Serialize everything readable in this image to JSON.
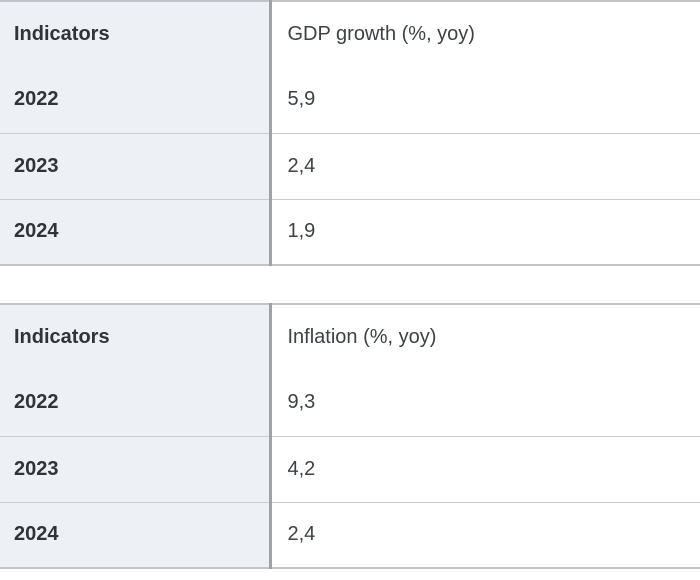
{
  "tables": [
    {
      "name": "gdp-growth",
      "header": {
        "col1": "Indicators",
        "col2": "GDP growth (%, yoy)"
      },
      "rows": [
        {
          "year": "2022",
          "value": "5,9"
        },
        {
          "year": "2023",
          "value": "2,4"
        },
        {
          "year": "2024",
          "value": "1,9"
        }
      ]
    },
    {
      "name": "inflation",
      "header": {
        "col1": "Indicators",
        "col2": "Inflation (%, yoy)"
      },
      "rows": [
        {
          "year": "2022",
          "value": "9,3"
        },
        {
          "year": "2023",
          "value": "4,2"
        },
        {
          "year": "2024",
          "value": "2,4"
        }
      ]
    }
  ],
  "colors": {
    "left_col_bg": "#edf0f5",
    "right_col_bg": "#ffffff",
    "divider": "#a0a3a6",
    "row_line": "#c9cdd1",
    "outer_line": "#c2c4c6",
    "text_bold": "#2f3439",
    "text_regular": "#3d4146",
    "page_bg": "#ffffff"
  }
}
